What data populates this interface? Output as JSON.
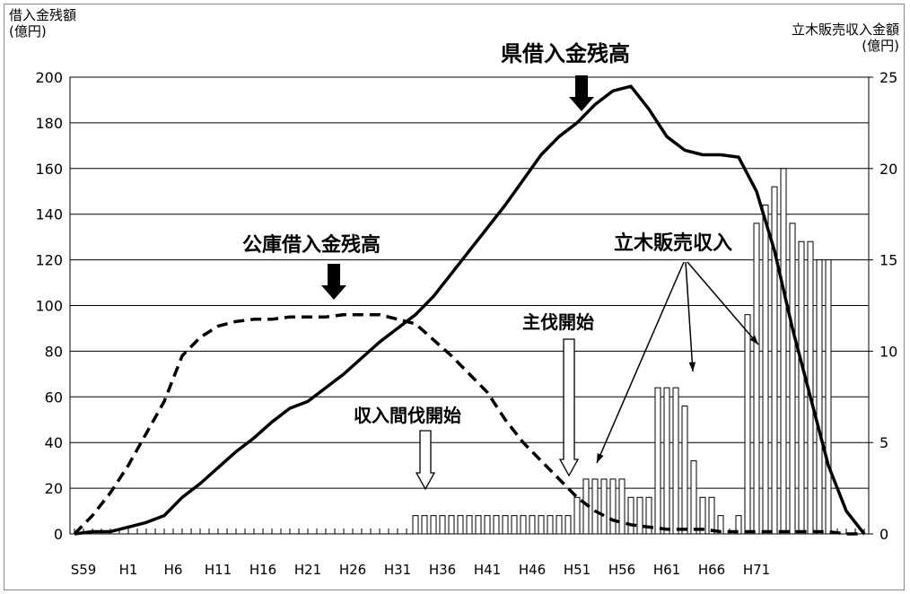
{
  "chart_data": {
    "type": "bar+line",
    "y_left_label_line1": "借入金残額",
    "y_left_label_line2": "(億円)",
    "y_right_label_line1": "立木販売収入金額",
    "y_right_label_line2": "(億円)",
    "y_left_ticks": [
      "0",
      "20",
      "40",
      "60",
      "80",
      "100",
      "120",
      "140",
      "160",
      "180",
      "200"
    ],
    "y_right_ticks": [
      "0",
      "5",
      "10",
      "15",
      "20",
      "25"
    ],
    "ylim_left": [
      0,
      200
    ],
    "ylim_right": [
      0,
      25
    ],
    "x_tick_labels": [
      "S59",
      "H1",
      "H6",
      "H11",
      "H16",
      "H21",
      "H26",
      "H31",
      "H36",
      "H41",
      "H46",
      "H51",
      "H56",
      "H61",
      "H66",
      "H71"
    ],
    "grid": true,
    "series": [
      {
        "name": "県借入金残高",
        "style": "solid",
        "axis": "left",
        "x": [
          0,
          2,
          4,
          6,
          8,
          10,
          12,
          14,
          16,
          18,
          20,
          22,
          24,
          26,
          28,
          30,
          32,
          34,
          36,
          38,
          40,
          42,
          44,
          46,
          48,
          50,
          52,
          54,
          56,
          58,
          60,
          62,
          64,
          66,
          68,
          70,
          72,
          74,
          76,
          78,
          80,
          82,
          84,
          86,
          88
        ],
        "y": [
          0,
          1,
          1,
          3,
          5,
          8,
          16,
          22,
          29,
          36,
          42,
          49,
          55,
          58,
          64,
          70,
          77,
          84,
          90,
          96,
          104,
          114,
          124,
          134,
          144,
          155,
          166,
          174,
          180,
          188,
          194,
          196,
          186,
          174,
          168,
          166,
          166,
          165,
          150,
          124,
          90,
          60,
          30,
          10,
          0
        ]
      },
      {
        "name": "公庫借入金残高",
        "style": "dashed",
        "axis": "left",
        "x": [
          0,
          2,
          4,
          6,
          8,
          10,
          12,
          14,
          16,
          18,
          20,
          22,
          24,
          26,
          28,
          30,
          32,
          34,
          36,
          38,
          40,
          42,
          44,
          46,
          48,
          50,
          52,
          54,
          56,
          58,
          60,
          62,
          64,
          66,
          68,
          70,
          72,
          74,
          76,
          78,
          80,
          82,
          84,
          86,
          88
        ],
        "y": [
          0,
          8,
          18,
          30,
          44,
          58,
          78,
          86,
          91,
          93,
          94,
          94,
          95,
          95,
          95,
          96,
          96,
          96,
          94,
          92,
          85,
          78,
          70,
          62,
          50,
          40,
          32,
          24,
          16,
          10,
          6,
          4,
          3,
          2,
          2,
          2,
          1,
          1,
          1,
          1,
          1,
          1,
          1,
          0,
          0
        ]
      },
      {
        "name": "立木販売収入",
        "style": "bars",
        "axis": "right",
        "x": [
          38,
          39,
          40,
          41,
          42,
          43,
          44,
          45,
          46,
          47,
          48,
          49,
          50,
          51,
          52,
          53,
          54,
          55,
          56,
          57,
          58,
          59,
          60,
          61,
          62,
          63,
          64,
          65,
          66,
          67,
          68,
          69,
          70,
          71,
          72,
          73,
          74,
          75,
          76,
          77,
          78,
          79,
          80,
          81,
          82,
          83,
          84,
          85,
          86,
          87,
          88
        ],
        "y": [
          1,
          1,
          1,
          1,
          1,
          1,
          1,
          1,
          1,
          1,
          1,
          1,
          1,
          1,
          1,
          1,
          1,
          1,
          2,
          3,
          3,
          3,
          3,
          3,
          2,
          2,
          2,
          8,
          8,
          8,
          7,
          4,
          2,
          2,
          1,
          0,
          1,
          12,
          17,
          18,
          19,
          20,
          17,
          16,
          16,
          15,
          15,
          0,
          0,
          0,
          0
        ]
      }
    ],
    "annotations": {
      "prefecture_loan": "県借入金残高",
      "corp_loan": "公庫借入金残高",
      "timber_sales": "立木販売収入",
      "main_cut": "主伐開始",
      "thinning": "収入間伐開始"
    }
  }
}
